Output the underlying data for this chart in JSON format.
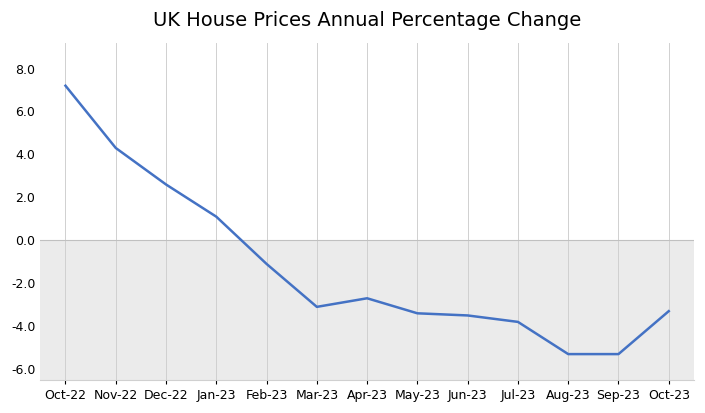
{
  "title": "UK House Prices Annual Percentage Change",
  "x_labels": [
    "Oct-22",
    "Nov-22",
    "Dec-22",
    "Jan-23",
    "Feb-23",
    "Mar-23",
    "Apr-23",
    "May-23",
    "Jun-23",
    "Jul-23",
    "Aug-23",
    "Sep-23",
    "Oct-23"
  ],
  "y_values": [
    7.2,
    4.3,
    2.6,
    1.1,
    -1.1,
    -3.1,
    -2.7,
    -3.4,
    -3.5,
    -3.8,
    -5.3,
    -5.3,
    -3.3
  ],
  "line_color": "#4472c4",
  "line_width": 1.8,
  "ylim": [
    -6.5,
    9.2
  ],
  "yticks": [
    -6.0,
    -4.0,
    -2.0,
    0.0,
    2.0,
    4.0,
    6.0,
    8.0
  ],
  "bg_above_zero": "#ffffff",
  "bg_below_zero": "#ebebeb",
  "fig_background": "#ffffff",
  "title_fontsize": 14,
  "tick_fontsize": 9,
  "figsize": [
    7.05,
    4.13
  ],
  "dpi": 100,
  "grid_color": "#d0d0d0",
  "zero_line_color": "#c0c0c0",
  "spine_color": "#d0d0d0"
}
